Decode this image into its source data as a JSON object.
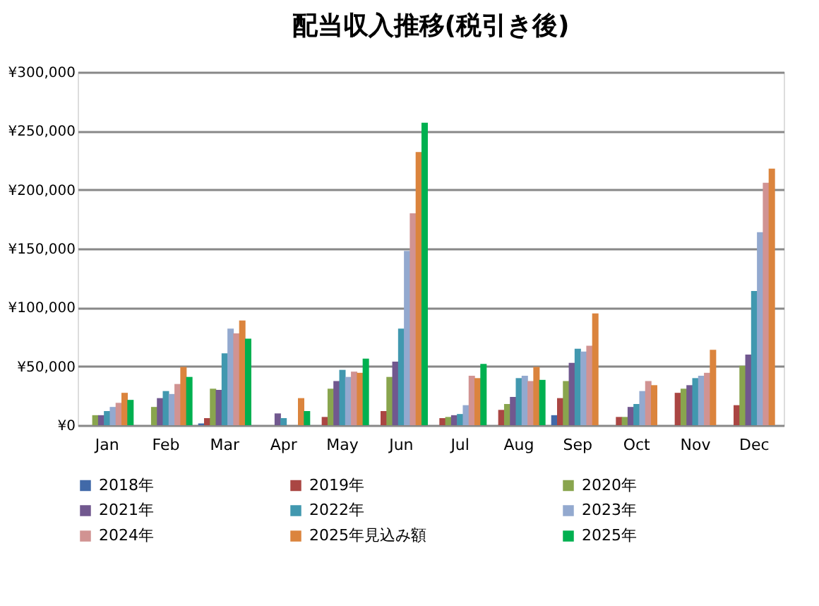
{
  "chart_data": {
    "type": "bar",
    "title": "配当収入推移(税引き後)",
    "categories": [
      "Jan",
      "Feb",
      "Mar",
      "Apr",
      "May",
      "Jun",
      "Jul",
      "Aug",
      "Sep",
      "Oct",
      "Nov",
      "Dec"
    ],
    "ylim": [
      0,
      300000
    ],
    "yticks": [
      {
        "value": 0,
        "label": "¥0"
      },
      {
        "value": 50000,
        "label": "¥50,000"
      },
      {
        "value": 100000,
        "label": "¥100,000"
      },
      {
        "value": 150000,
        "label": "¥150,000"
      },
      {
        "value": 200000,
        "label": "¥200,000"
      },
      {
        "value": 250000,
        "label": "¥250,000"
      },
      {
        "value": 300000,
        "label": "¥300,000"
      }
    ],
    "grid": "y",
    "legend": "bottom",
    "series": [
      {
        "name": "2018年",
        "color": "#4169a8",
        "values": [
          null,
          null,
          1500,
          null,
          null,
          null,
          null,
          null,
          8500,
          null,
          null,
          null
        ]
      },
      {
        "name": "2019年",
        "color": "#aa4643",
        "values": [
          null,
          null,
          6000,
          null,
          7000,
          12000,
          6000,
          13000,
          23000,
          7000,
          27500,
          17000
        ]
      },
      {
        "name": "2020年",
        "color": "#89a54e",
        "values": [
          8500,
          15500,
          31000,
          null,
          31000,
          41000,
          7000,
          18000,
          37500,
          7000,
          31000,
          50500
        ]
      },
      {
        "name": "2021年",
        "color": "#71588f",
        "values": [
          8500,
          23000,
          30000,
          10000,
          37500,
          54000,
          8500,
          24000,
          53000,
          15500,
          34000,
          60000
        ]
      },
      {
        "name": "2022年",
        "color": "#4198af",
        "values": [
          12000,
          29000,
          61000,
          6000,
          47000,
          82000,
          9500,
          40000,
          65000,
          18000,
          40000,
          114000
        ]
      },
      {
        "name": "2023年",
        "color": "#93a9cf",
        "values": [
          15500,
          26500,
          82000,
          null,
          41000,
          148000,
          17000,
          42000,
          62500,
          29000,
          42000,
          164000
        ]
      },
      {
        "name": "2024年",
        "color": "#d19392",
        "values": [
          19000,
          35000,
          78000,
          null,
          45500,
          180000,
          42000,
          37500,
          67500,
          37500,
          44500,
          206000
        ]
      },
      {
        "name": "2025年見込み額",
        "color": "#db843d",
        "values": [
          27500,
          49500,
          89000,
          23000,
          44500,
          232000,
          40000,
          49500,
          95000,
          34000,
          64000,
          218000
        ]
      },
      {
        "name": "2025年",
        "color": "#00b050",
        "values": [
          21500,
          41000,
          73500,
          12000,
          56500,
          257000,
          52000,
          38500,
          null,
          null,
          null,
          null
        ]
      }
    ]
  }
}
